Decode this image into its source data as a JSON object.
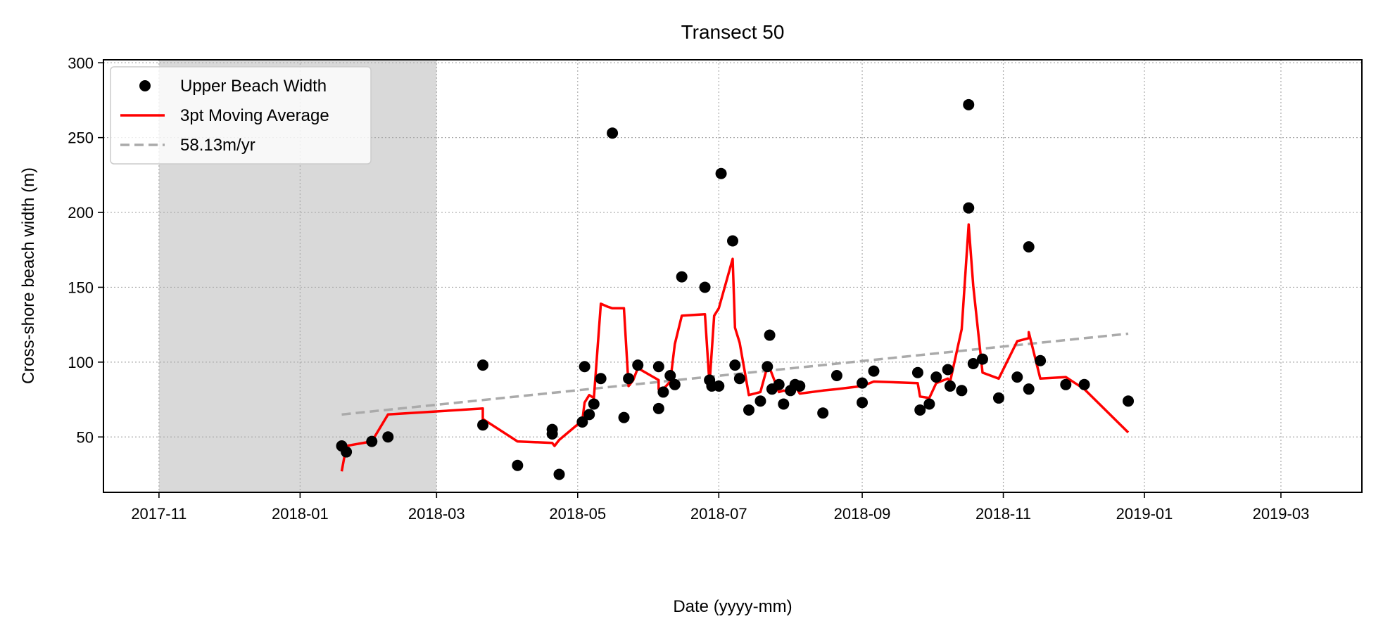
{
  "chart_data": {
    "type": "scatter",
    "title": "Transect 50",
    "xlabel": "Date (yyyy-mm)",
    "ylabel": "Cross-shore beach width (m)",
    "xlim": [
      "2017-10-08",
      "2019-04-05"
    ],
    "ylim": [
      13,
      302
    ],
    "x_ticks": [
      "2017-11-01",
      "2018-01-01",
      "2018-03-01",
      "2018-05-01",
      "2018-07-01",
      "2018-09-01",
      "2018-11-01",
      "2019-01-01",
      "2019-03-01"
    ],
    "x_tick_labels": [
      "2017-11",
      "2018-01",
      "2018-03",
      "2018-05",
      "2018-07",
      "2018-09",
      "2018-11",
      "2019-01",
      "2019-03"
    ],
    "y_ticks": [
      50,
      100,
      150,
      200,
      250,
      300
    ],
    "y_tick_labels": [
      "50",
      "100",
      "150",
      "200",
      "250",
      "300"
    ],
    "grid": true,
    "legend_position": "top-left",
    "shaded_region": {
      "start": "2017-11-01",
      "end": "2018-03-01",
      "color": "#d9d9d9"
    },
    "colors": {
      "points": "#000000",
      "moving_average": "#ff0000",
      "trend": "#aaaaaa",
      "grid": "#aaaaaa"
    },
    "series": [
      {
        "name": "Upper Beach Width",
        "kind": "scatter",
        "points": [
          [
            "2018-01-19",
            44
          ],
          [
            "2018-01-21",
            40
          ],
          [
            "2018-02-01",
            47
          ],
          [
            "2018-02-08",
            50
          ],
          [
            "2018-03-21",
            98
          ],
          [
            "2018-03-21",
            58
          ],
          [
            "2018-04-05",
            31
          ],
          [
            "2018-04-20",
            55
          ],
          [
            "2018-04-20",
            52
          ],
          [
            "2018-04-23",
            25
          ],
          [
            "2018-05-03",
            60
          ],
          [
            "2018-05-04",
            97
          ],
          [
            "2018-05-06",
            65
          ],
          [
            "2018-05-08",
            72
          ],
          [
            "2018-05-11",
            89
          ],
          [
            "2018-05-16",
            253
          ],
          [
            "2018-05-21",
            63
          ],
          [
            "2018-05-23",
            89
          ],
          [
            "2018-05-27",
            98
          ],
          [
            "2018-06-05",
            97
          ],
          [
            "2018-06-05",
            69
          ],
          [
            "2018-06-07",
            80
          ],
          [
            "2018-06-10",
            91
          ],
          [
            "2018-06-12",
            85
          ],
          [
            "2018-06-15",
            157
          ],
          [
            "2018-06-25",
            150
          ],
          [
            "2018-06-27",
            88
          ],
          [
            "2018-06-28",
            84
          ],
          [
            "2018-07-01",
            84
          ],
          [
            "2018-07-02",
            226
          ],
          [
            "2018-07-07",
            181
          ],
          [
            "2018-07-08",
            98
          ],
          [
            "2018-07-10",
            89
          ],
          [
            "2018-07-14",
            68
          ],
          [
            "2018-07-19",
            74
          ],
          [
            "2018-07-22",
            97
          ],
          [
            "2018-07-23",
            118
          ],
          [
            "2018-07-24",
            82
          ],
          [
            "2018-07-27",
            85
          ],
          [
            "2018-07-29",
            72
          ],
          [
            "2018-08-01",
            81
          ],
          [
            "2018-08-03",
            85
          ],
          [
            "2018-08-05",
            84
          ],
          [
            "2018-08-15",
            66
          ],
          [
            "2018-08-21",
            91
          ],
          [
            "2018-09-01",
            86
          ],
          [
            "2018-09-01",
            73
          ],
          [
            "2018-09-06",
            94
          ],
          [
            "2018-09-25",
            93
          ],
          [
            "2018-09-26",
            68
          ],
          [
            "2018-09-30",
            72
          ],
          [
            "2018-10-03",
            90
          ],
          [
            "2018-10-08",
            95
          ],
          [
            "2018-10-09",
            84
          ],
          [
            "2018-10-14",
            81
          ],
          [
            "2018-10-17",
            272
          ],
          [
            "2018-10-17",
            203
          ],
          [
            "2018-10-19",
            99
          ],
          [
            "2018-10-23",
            102
          ],
          [
            "2018-10-30",
            76
          ],
          [
            "2018-11-07",
            90
          ],
          [
            "2018-11-12",
            177
          ],
          [
            "2018-11-12",
            82
          ],
          [
            "2018-11-17",
            101
          ],
          [
            "2018-11-28",
            85
          ],
          [
            "2018-12-06",
            85
          ],
          [
            "2018-12-25",
            74
          ]
        ]
      },
      {
        "name": "3pt Moving Average",
        "kind": "line",
        "points": [
          [
            "2018-01-19",
            27
          ],
          [
            "2018-01-21",
            44
          ],
          [
            "2018-02-01",
            47
          ],
          [
            "2018-02-08",
            65
          ],
          [
            "2018-03-21",
            69
          ],
          [
            "2018-03-21",
            62
          ],
          [
            "2018-04-05",
            47
          ],
          [
            "2018-04-20",
            46
          ],
          [
            "2018-04-21",
            44
          ],
          [
            "2018-04-23",
            48
          ],
          [
            "2018-05-03",
            61
          ],
          [
            "2018-05-04",
            73
          ],
          [
            "2018-05-06",
            78
          ],
          [
            "2018-05-08",
            76
          ],
          [
            "2018-05-11",
            139
          ],
          [
            "2018-05-14",
            137
          ],
          [
            "2018-05-16",
            136
          ],
          [
            "2018-05-21",
            136
          ],
          [
            "2018-05-23",
            84
          ],
          [
            "2018-05-25",
            88
          ],
          [
            "2018-05-27",
            96
          ],
          [
            "2018-06-05",
            88
          ],
          [
            "2018-06-05",
            82
          ],
          [
            "2018-06-07",
            82
          ],
          [
            "2018-06-10",
            87
          ],
          [
            "2018-06-12",
            112
          ],
          [
            "2018-06-15",
            131
          ],
          [
            "2018-06-25",
            132
          ],
          [
            "2018-06-27",
            85
          ],
          [
            "2018-06-29",
            131
          ],
          [
            "2018-07-01",
            136
          ],
          [
            "2018-07-07",
            169
          ],
          [
            "2018-07-08",
            123
          ],
          [
            "2018-07-10",
            113
          ],
          [
            "2018-07-14",
            78
          ],
          [
            "2018-07-19",
            80
          ],
          [
            "2018-07-22",
            97
          ],
          [
            "2018-07-23",
            96
          ],
          [
            "2018-07-27",
            80
          ],
          [
            "2018-07-29",
            81
          ],
          [
            "2018-08-01",
            80
          ],
          [
            "2018-08-03",
            84
          ],
          [
            "2018-08-05",
            79
          ],
          [
            "2018-08-15",
            81
          ],
          [
            "2018-08-21",
            82
          ],
          [
            "2018-09-01",
            84
          ],
          [
            "2018-09-06",
            87
          ],
          [
            "2018-09-25",
            86
          ],
          [
            "2018-09-26",
            77
          ],
          [
            "2018-09-30",
            76
          ],
          [
            "2018-10-03",
            86
          ],
          [
            "2018-10-08",
            89
          ],
          [
            "2018-10-09",
            87
          ],
          [
            "2018-10-14",
            122
          ],
          [
            "2018-10-17",
            192
          ],
          [
            "2018-10-19",
            151
          ],
          [
            "2018-10-23",
            93
          ],
          [
            "2018-10-30",
            89
          ],
          [
            "2018-11-07",
            114
          ],
          [
            "2018-11-12",
            116
          ],
          [
            "2018-11-12",
            120
          ],
          [
            "2018-11-17",
            89
          ],
          [
            "2018-11-28",
            90
          ],
          [
            "2018-12-06",
            82
          ],
          [
            "2018-12-25",
            53
          ]
        ]
      },
      {
        "name": "58.13m/yr",
        "kind": "trend",
        "points": [
          [
            "2018-01-19",
            65
          ],
          [
            "2018-12-25",
            119
          ]
        ]
      }
    ]
  }
}
